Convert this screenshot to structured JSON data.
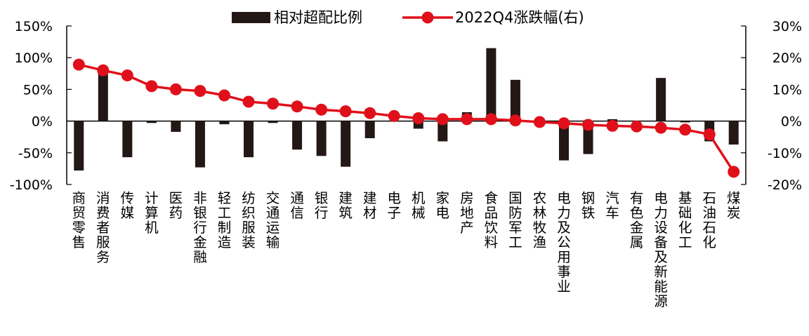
{
  "chart_data": {
    "type": "bar",
    "categories": [
      "商贸零售",
      "消费者服务",
      "传媒",
      "计算机",
      "医药",
      "非银行金融",
      "轻工制造",
      "纺织服装",
      "交通运输",
      "通信",
      "银行",
      "建筑",
      "建材",
      "电子",
      "机械",
      "家电",
      "房地产",
      "食品饮料",
      "国防军工",
      "农林牧渔",
      "电力及公用事业",
      "钢铁",
      "汽车",
      "有色金属",
      "电力设备及新能源",
      "基础化工",
      "石油石化",
      "煤炭"
    ],
    "series": [
      {
        "name": "相对超配比例",
        "kind": "bar",
        "axis": "left",
        "color": "#231815",
        "values": [
          -78,
          80,
          -57,
          -3,
          -17,
          -73,
          -5,
          -57,
          -3,
          -45,
          -55,
          -72,
          -27,
          0,
          -12,
          -32,
          14,
          115,
          65,
          0,
          -62,
          -52,
          3,
          0,
          68,
          -2,
          -32,
          -37
        ]
      },
      {
        "name": "2022Q4涨跌幅(右)",
        "kind": "line",
        "axis": "right",
        "color": "#e0101b",
        "values": [
          17.8,
          16.0,
          14.4,
          11.0,
          10.0,
          9.5,
          8.1,
          6.1,
          5.5,
          4.6,
          3.6,
          3.1,
          2.5,
          1.6,
          0.9,
          0.6,
          0.6,
          0.6,
          0.2,
          -0.3,
          -0.7,
          -1.2,
          -1.5,
          -1.7,
          -2.1,
          -2.7,
          -4.2,
          -16.0
        ]
      }
    ],
    "y_left": {
      "ylim": [
        -100,
        150
      ],
      "ticks": [
        "-100%",
        "-50%",
        "0%",
        "50%",
        "100%",
        "150%"
      ]
    },
    "y_right": {
      "ylim": [
        -20,
        30
      ],
      "ticks": [
        "-20%",
        "-10%",
        "0%",
        "10%",
        "20%",
        "30%"
      ]
    },
    "legend_position": "top-center",
    "grid": false
  }
}
